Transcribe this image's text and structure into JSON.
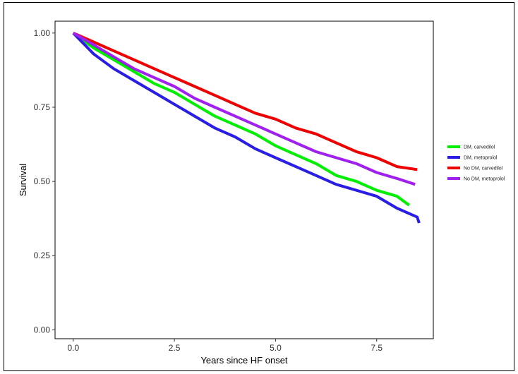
{
  "chart_data": {
    "type": "line",
    "title": "",
    "xlabel": "Years since HF onset",
    "ylabel": "Survival",
    "xlim": [
      -0.45,
      8.9
    ],
    "ylim": [
      -0.03,
      1.04
    ],
    "xticks": [
      0,
      2.5,
      5,
      7.5
    ],
    "xtick_labels": [
      "0.0",
      "2.5",
      "5.0",
      "7.5"
    ],
    "yticks": [
      0,
      0.25,
      0.5,
      0.75,
      1
    ],
    "ytick_labels": [
      "0.00",
      "0.25",
      "0.50",
      "0.75",
      "1.00"
    ],
    "grid": false,
    "legend": "right",
    "series": [
      {
        "name": "DM, carvedilol",
        "color": "#00ee00",
        "x": [
          0,
          0.5,
          1,
          1.5,
          2,
          2.5,
          3,
          3.5,
          4,
          4.5,
          5,
          5.5,
          6,
          6.5,
          7,
          7.5,
          8,
          8.3
        ],
        "y": [
          1.0,
          0.95,
          0.91,
          0.87,
          0.83,
          0.8,
          0.76,
          0.72,
          0.69,
          0.66,
          0.62,
          0.59,
          0.56,
          0.52,
          0.5,
          0.47,
          0.45,
          0.42
        ]
      },
      {
        "name": "DM,  metoprolol",
        "color": "#2a1ee6",
        "x": [
          0,
          0.5,
          1,
          1.5,
          2,
          2.5,
          3,
          3.5,
          4,
          4.5,
          5,
          5.5,
          6,
          6.5,
          7,
          7.5,
          8,
          8.5,
          8.55
        ],
        "y": [
          1.0,
          0.93,
          0.88,
          0.84,
          0.8,
          0.76,
          0.72,
          0.68,
          0.65,
          0.61,
          0.58,
          0.55,
          0.52,
          0.49,
          0.47,
          0.45,
          0.41,
          0.38,
          0.36
        ]
      },
      {
        "name": "No DM, carvedilol",
        "color": "#ee0000",
        "x": [
          0,
          0.5,
          1,
          1.5,
          2,
          2.5,
          3,
          3.5,
          4,
          4.5,
          5,
          5.5,
          6,
          6.5,
          7,
          7.5,
          8,
          8.5
        ],
        "y": [
          1.0,
          0.97,
          0.94,
          0.91,
          0.88,
          0.85,
          0.82,
          0.79,
          0.76,
          0.73,
          0.71,
          0.68,
          0.66,
          0.63,
          0.6,
          0.58,
          0.55,
          0.54
        ]
      },
      {
        "name": "No DM, metoprolol",
        "color": "#a020f0",
        "x": [
          0,
          0.5,
          1,
          1.5,
          2,
          2.5,
          3,
          3.5,
          4,
          4.5,
          5,
          5.5,
          6,
          6.5,
          7,
          7.5,
          8,
          8.45
        ],
        "y": [
          1.0,
          0.96,
          0.92,
          0.88,
          0.85,
          0.82,
          0.78,
          0.75,
          0.72,
          0.69,
          0.66,
          0.63,
          0.6,
          0.58,
          0.56,
          0.53,
          0.51,
          0.49
        ]
      }
    ]
  }
}
